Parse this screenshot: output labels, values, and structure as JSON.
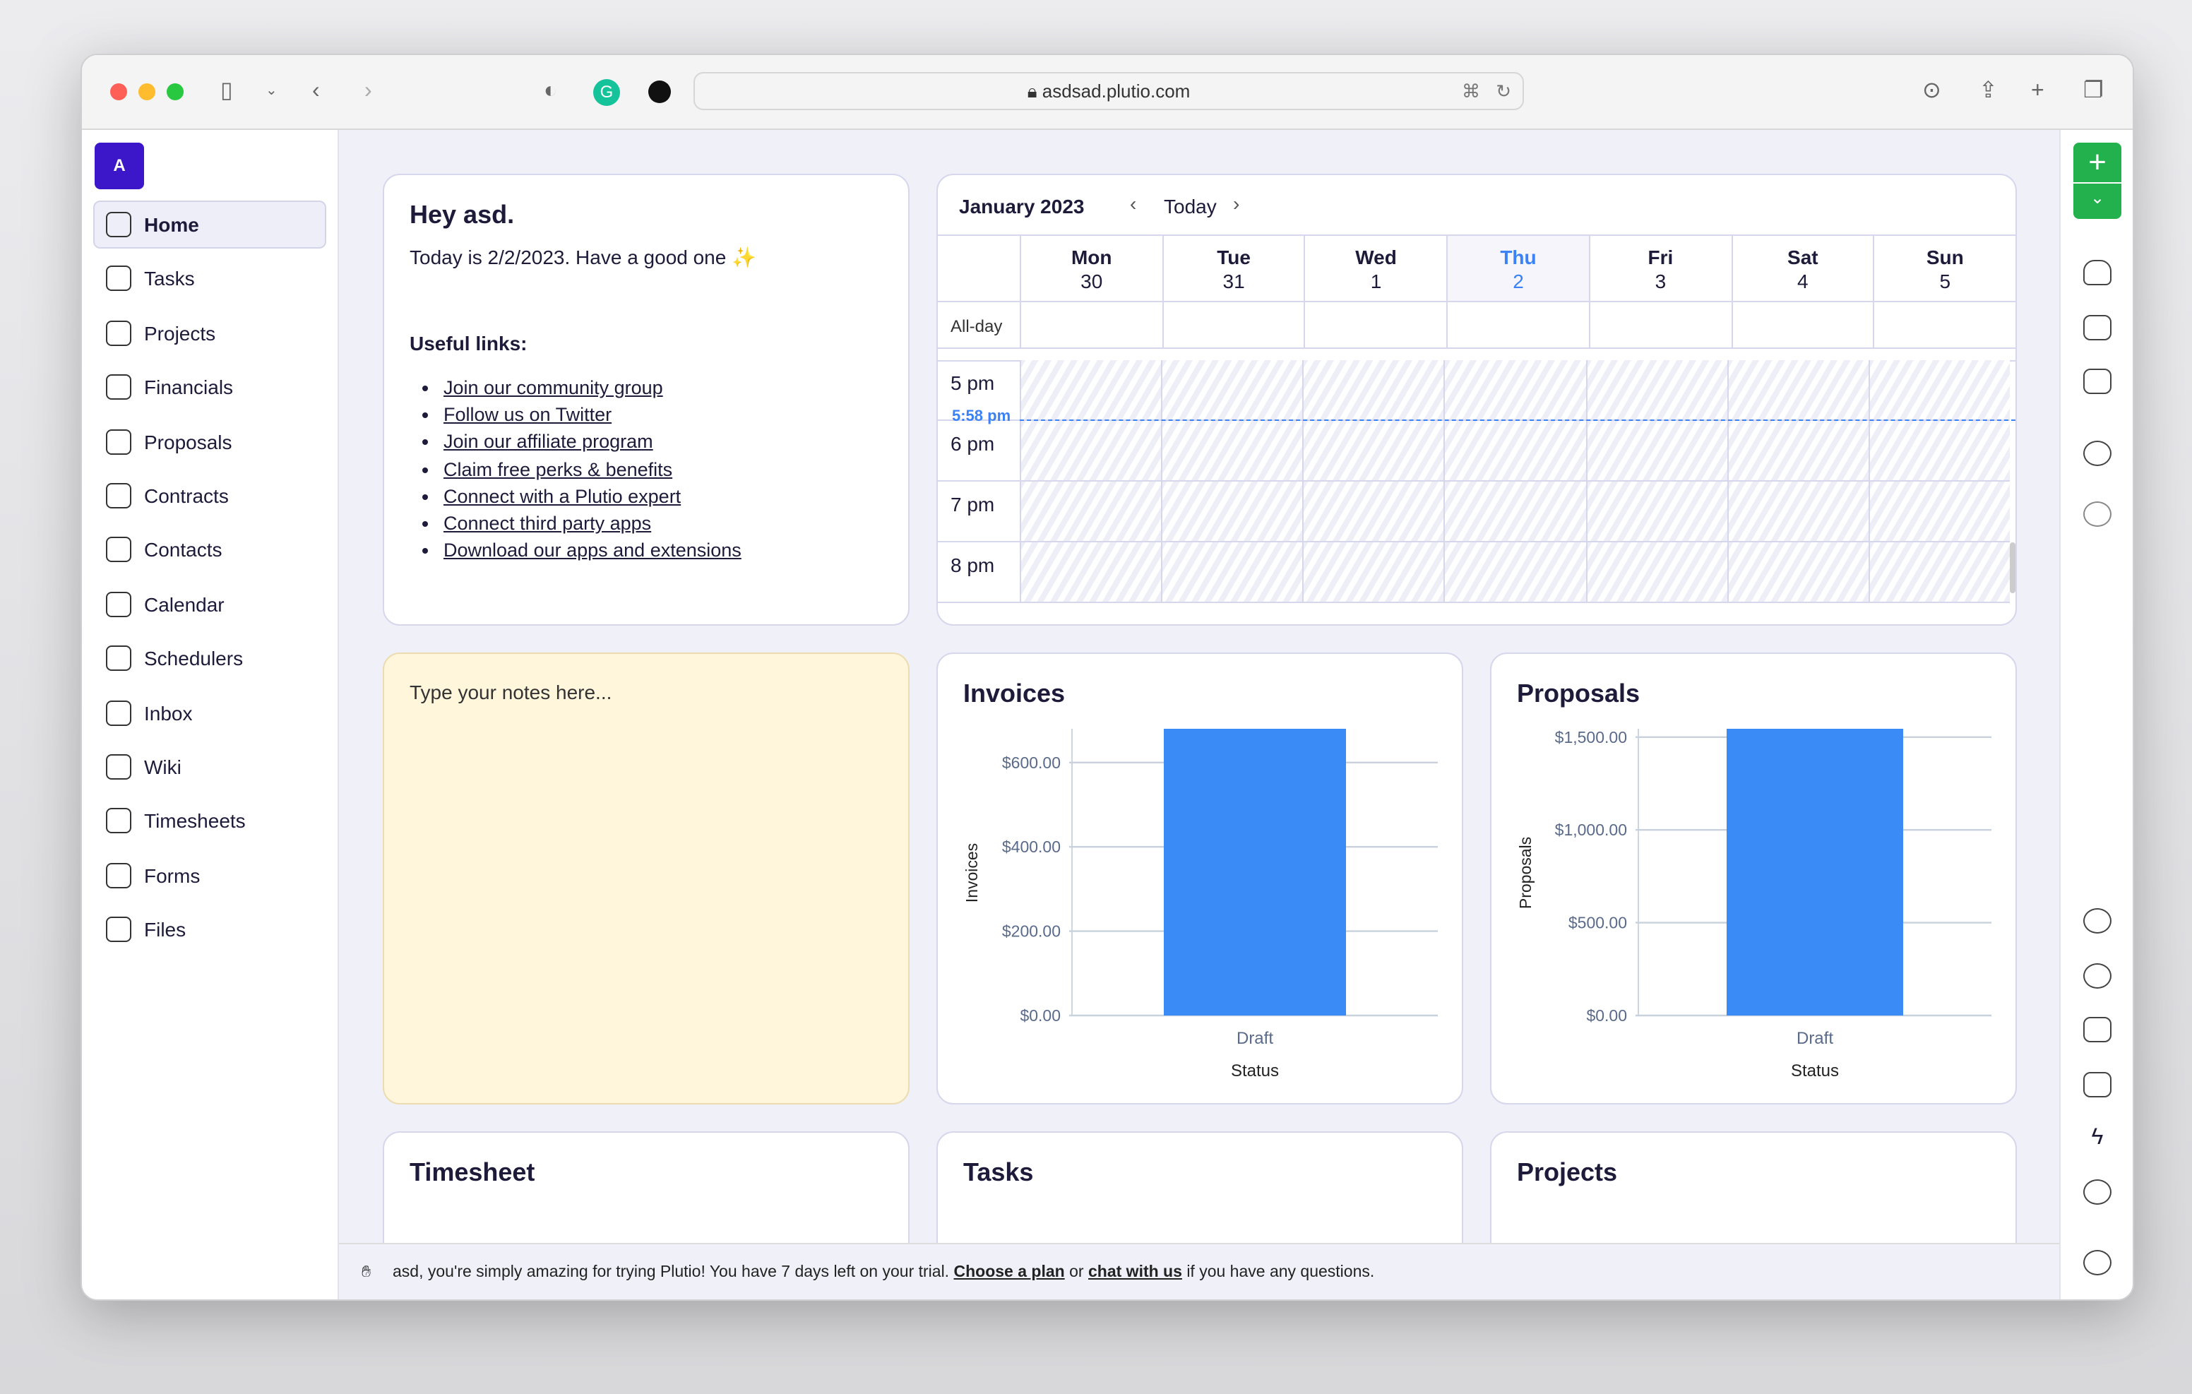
{
  "browser": {
    "url": "asdsad.plutio.com"
  },
  "sidebar": {
    "logo": "A",
    "items": [
      {
        "label": "Home",
        "active": true
      },
      {
        "label": "Tasks"
      },
      {
        "label": "Projects"
      },
      {
        "label": "Financials"
      },
      {
        "label": "Proposals"
      },
      {
        "label": "Contracts"
      },
      {
        "label": "Contacts"
      },
      {
        "label": "Calendar"
      },
      {
        "label": "Schedulers"
      },
      {
        "label": "Inbox"
      },
      {
        "label": "Wiki"
      },
      {
        "label": "Timesheets"
      },
      {
        "label": "Forms"
      },
      {
        "label": "Files"
      }
    ]
  },
  "welcome": {
    "title": "Hey asd.",
    "subtitle": "Today is 2/2/2023. Have a good one ✨",
    "links_title": "Useful links:",
    "links": [
      "Join our community group",
      "Follow us on Twitter",
      "Join our affiliate program",
      "Claim free perks & benefits",
      "Connect with a Plutio expert",
      "Connect third party apps",
      "Download our apps and extensions"
    ]
  },
  "calendar": {
    "month": "January 2023",
    "today": "Today",
    "days": [
      {
        "name": "Mon",
        "num": "30"
      },
      {
        "name": "Tue",
        "num": "31"
      },
      {
        "name": "Wed",
        "num": "1"
      },
      {
        "name": "Thu",
        "num": "2",
        "today": true
      },
      {
        "name": "Fri",
        "num": "3"
      },
      {
        "name": "Sat",
        "num": "4"
      },
      {
        "name": "Sun",
        "num": "5"
      }
    ],
    "allday": "All-day",
    "hours": [
      "5 pm",
      "6 pm",
      "7 pm",
      "8 pm"
    ],
    "now": "5:58 pm",
    "accent": "#3b82f6"
  },
  "notes": {
    "placeholder": "Type your notes here...",
    "bg": "#fff6dc"
  },
  "chart_data": [
    {
      "type": "bar",
      "title": "Invoices",
      "xlabel": "Status",
      "ylabel": "Invoices",
      "categories": [
        "Draft"
      ],
      "values": [
        680
      ],
      "ylim": [
        0,
        680
      ],
      "ticks": [
        0,
        200,
        400,
        600
      ],
      "tick_labels": [
        "$0.00",
        "$200.00",
        "$400.00",
        "$600.00"
      ],
      "grid": true,
      "color": "#3b8bf7"
    },
    {
      "type": "bar",
      "title": "Proposals",
      "xlabel": "Status",
      "ylabel": "Proposals",
      "categories": [
        "Draft"
      ],
      "values": [
        1545
      ],
      "ylim": [
        0,
        1545
      ],
      "ticks": [
        0,
        500,
        1000,
        1500
      ],
      "tick_labels": [
        "$0.00",
        "$500.00",
        "$1,000.00",
        "$1,500.00"
      ],
      "grid": true,
      "color": "#3b8bf7"
    }
  ],
  "bottom_cards": [
    "Timesheet",
    "Tasks",
    "Projects"
  ],
  "banner": {
    "pre": "asd, you're simply amazing for trying Plutio! You have 7 days left on your trial.",
    "plan": "Choose a plan",
    "or": "or",
    "chat": "chat with us",
    "post": "if you have any questions."
  }
}
